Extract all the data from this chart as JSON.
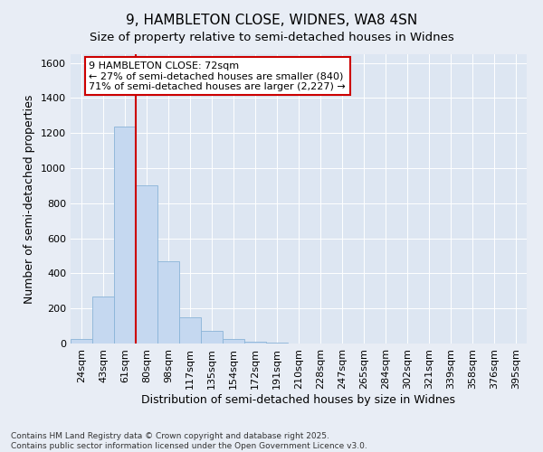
{
  "title": "9, HAMBLETON CLOSE, WIDNES, WA8 4SN",
  "subtitle": "Size of property relative to semi-detached houses in Widnes",
  "xlabel": "Distribution of semi-detached houses by size in Widnes",
  "ylabel": "Number of semi-detached properties",
  "categories": [
    "24sqm",
    "43sqm",
    "61sqm",
    "80sqm",
    "98sqm",
    "117sqm",
    "135sqm",
    "154sqm",
    "172sqm",
    "191sqm",
    "210sqm",
    "228sqm",
    "247sqm",
    "265sqm",
    "284sqm",
    "302sqm",
    "321sqm",
    "339sqm",
    "358sqm",
    "376sqm",
    "395sqm"
  ],
  "values": [
    28,
    270,
    1235,
    900,
    470,
    150,
    70,
    28,
    10,
    3,
    1,
    0,
    0,
    0,
    0,
    0,
    0,
    0,
    0,
    0,
    0
  ],
  "bar_color": "#c5d8f0",
  "bar_edge_color": "#8ab4d8",
  "vline_color": "#cc0000",
  "vline_x_index": 3,
  "annotation_text": "9 HAMBLETON CLOSE: 72sqm\n← 27% of semi-detached houses are smaller (840)\n71% of semi-detached houses are larger (2,227) →",
  "annotation_box_edgecolor": "#cc0000",
  "ylim": [
    0,
    1650
  ],
  "yticks": [
    0,
    200,
    400,
    600,
    800,
    1000,
    1200,
    1400,
    1600
  ],
  "footnote": "Contains HM Land Registry data © Crown copyright and database right 2025.\nContains public sector information licensed under the Open Government Licence v3.0.",
  "bg_color": "#e8edf5",
  "plot_bg_color": "#dde6f2",
  "grid_color": "#ffffff",
  "title_fontsize": 11,
  "subtitle_fontsize": 9.5,
  "axis_label_fontsize": 9,
  "tick_fontsize": 8,
  "annotation_fontsize": 8,
  "footnote_fontsize": 6.5
}
